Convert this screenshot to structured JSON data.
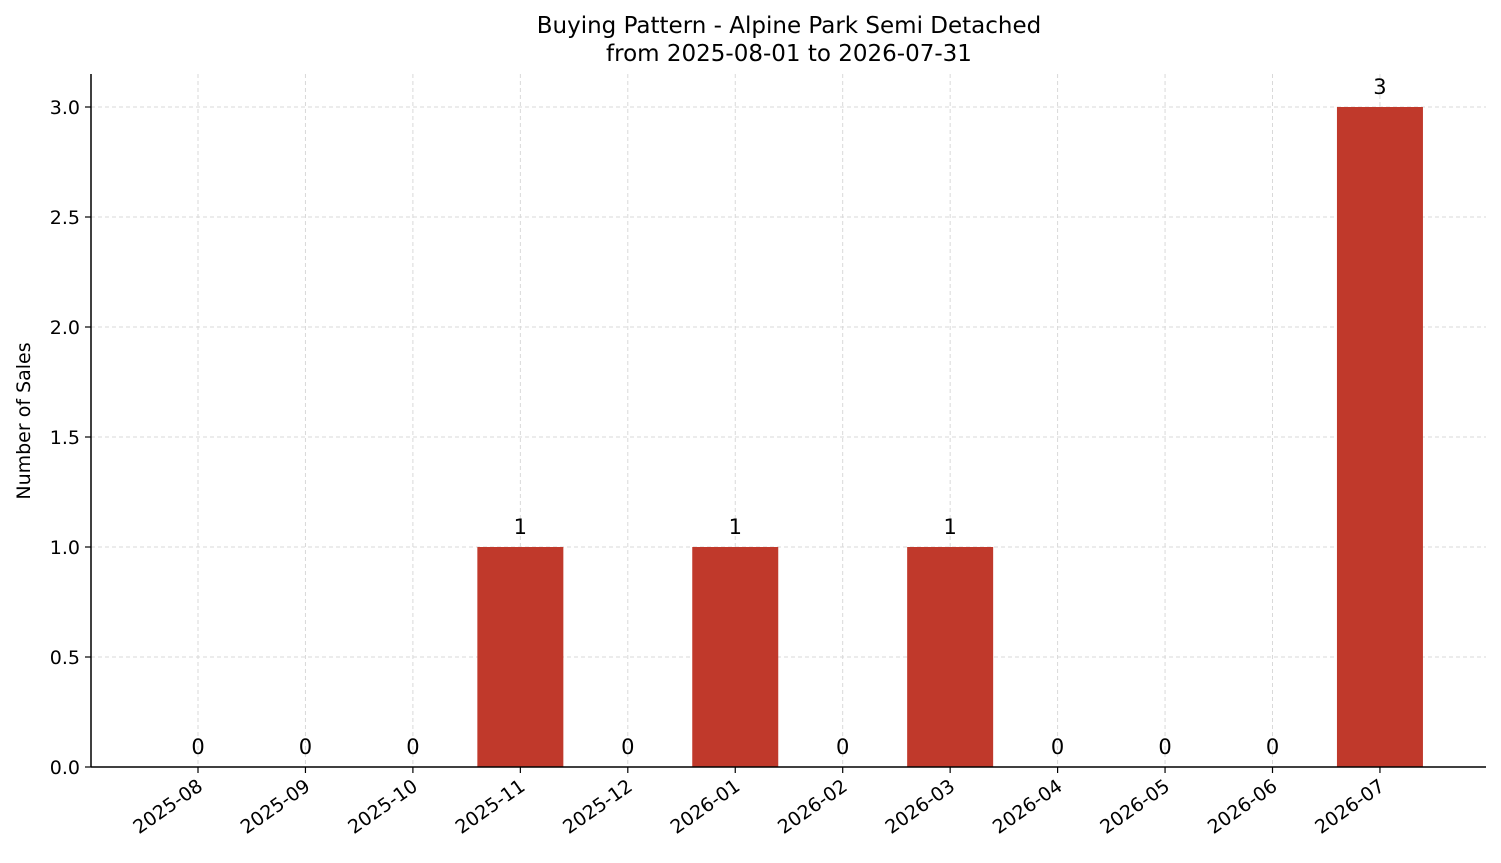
{
  "chart_data": {
    "type": "bar",
    "title": "Buying Pattern - Alpine Park Semi Detached",
    "subtitle": "from 2025-08-01 to 2026-07-31",
    "xlabel": "",
    "ylabel": "Number of Sales",
    "categories": [
      "2025-08",
      "2025-09",
      "2025-10",
      "2025-11",
      "2025-12",
      "2026-01",
      "2026-02",
      "2026-03",
      "2026-04",
      "2026-05",
      "2026-06",
      "2026-07"
    ],
    "values": [
      0,
      0,
      0,
      1,
      0,
      1,
      0,
      1,
      0,
      0,
      0,
      3
    ],
    "data_labels": [
      "0",
      "0",
      "0",
      "1",
      "0",
      "1",
      "0",
      "1",
      "0",
      "0",
      "0",
      "3"
    ],
    "ylim": [
      0,
      3.15
    ],
    "yticks": [
      "0.0",
      "0.5",
      "1.0",
      "1.5",
      "2.0",
      "2.5",
      "3.0"
    ],
    "grid": true,
    "bar_color": "#c0392b"
  }
}
